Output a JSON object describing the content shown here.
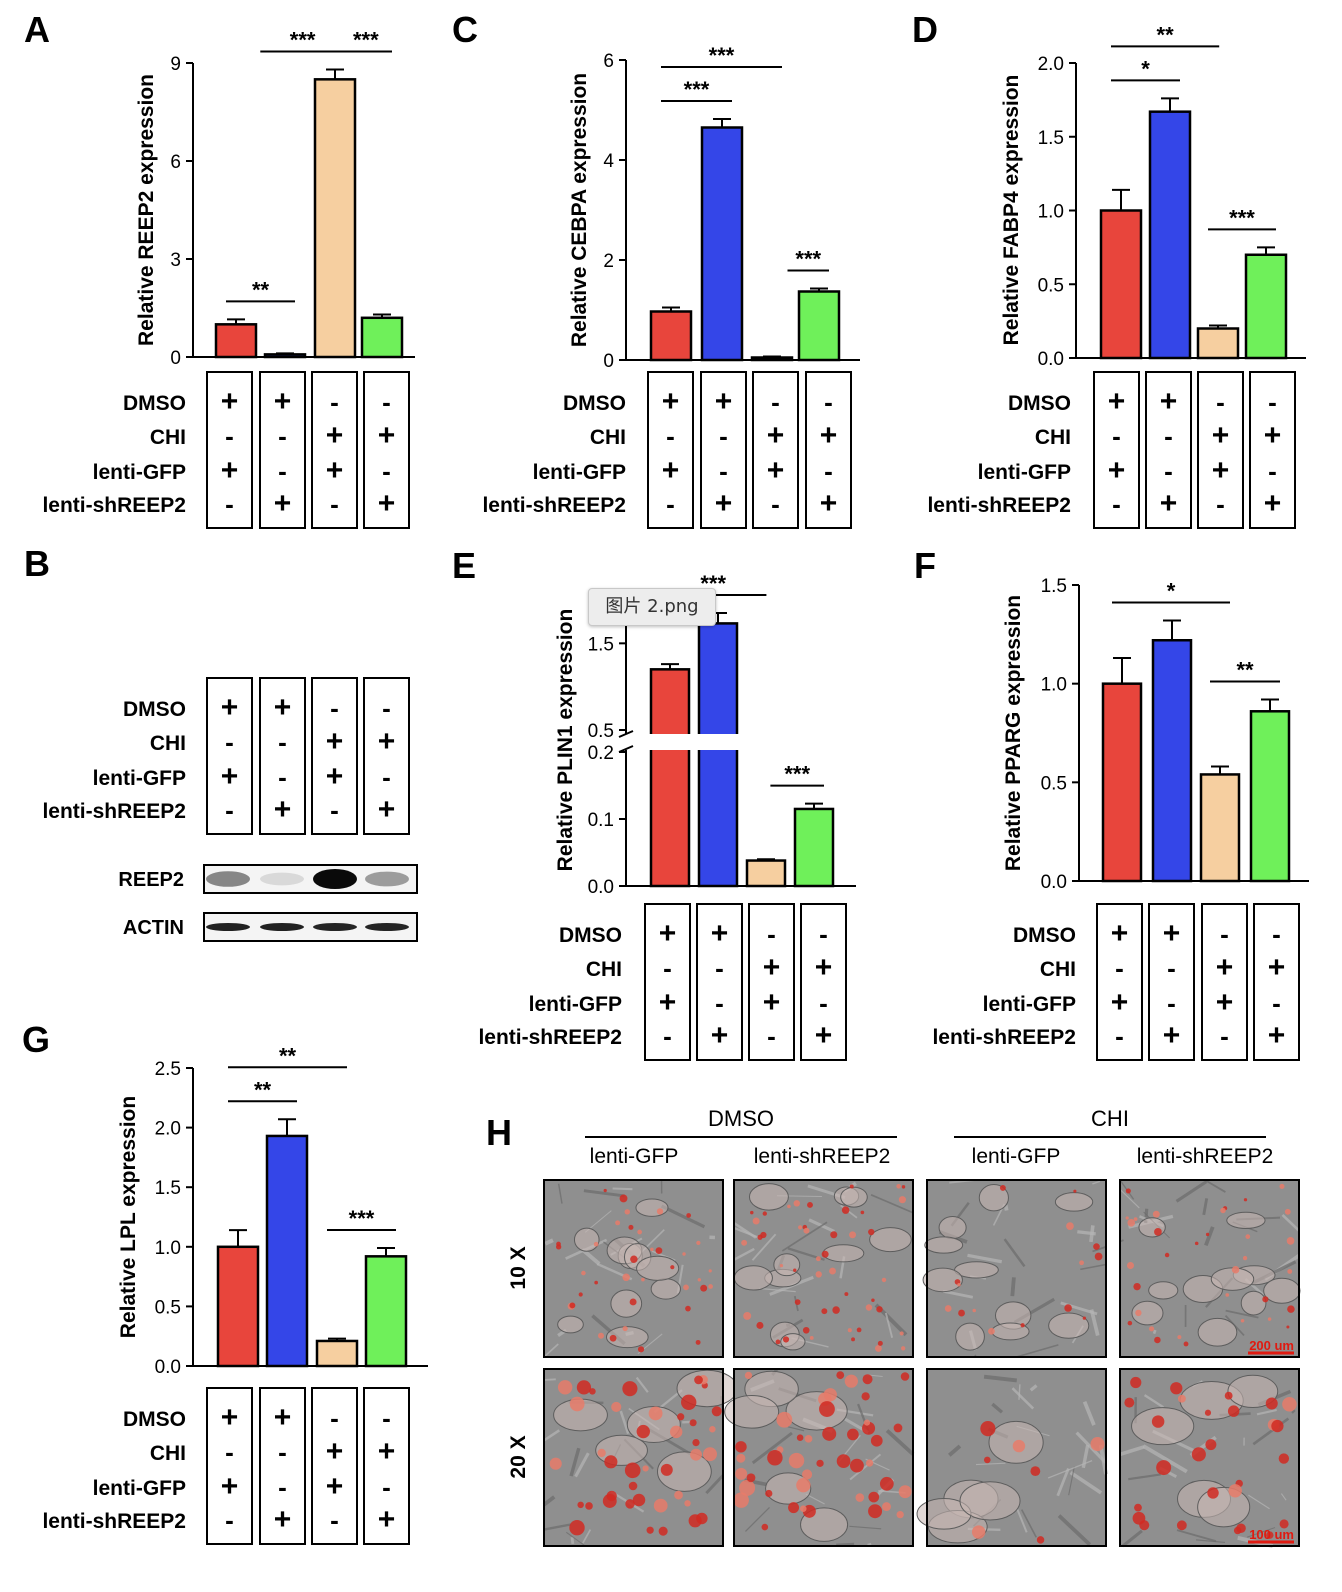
{
  "row_labels": [
    "DMSO",
    "CHI",
    "lenti-GFP",
    "lenti-shREEP2"
  ],
  "treatment_matrix": [
    [
      "+",
      "-",
      "+",
      "-"
    ],
    [
      "+",
      "-",
      "-",
      "+"
    ],
    [
      "-",
      "+",
      "+",
      "-"
    ],
    [
      "-",
      "+",
      "-",
      "+"
    ]
  ],
  "colors": {
    "bar1": "#e8453c",
    "bar2": "#3446e8",
    "bar3": "#f6cfa0",
    "bar4": "#6ff05a"
  },
  "tooltip": {
    "label": "图片 2.png"
  },
  "chart_data": [
    {
      "panel": "A",
      "type": "bar",
      "ylabel": "Relative REEP2 expression",
      "ylim": [
        0,
        9
      ],
      "yticks": [
        "0",
        "3",
        "6",
        "9"
      ],
      "tick_values": [
        0,
        3,
        6,
        9
      ],
      "values": [
        1.0,
        0.08,
        8.5,
        1.2
      ],
      "errors": [
        0.15,
        0.03,
        0.3,
        0.1
      ],
      "sig": [
        {
          "from": 0,
          "to": 1,
          "label": "**"
        },
        {
          "from": 0.7,
          "to": 2,
          "label": "***"
        },
        {
          "from": 2.3,
          "to": 3,
          "label": "***"
        }
      ]
    },
    {
      "panel": "C",
      "type": "bar",
      "ylabel": "Relative CEBPA expression",
      "ylim": [
        0,
        6
      ],
      "yticks": [
        "0",
        "2",
        "4",
        "6"
      ],
      "tick_values": [
        0,
        2,
        4,
        6
      ],
      "values": [
        0.97,
        4.65,
        0.05,
        1.37
      ],
      "errors": [
        0.08,
        0.17,
        0.02,
        0.06
      ],
      "sig": [
        {
          "from": 0,
          "to": 1,
          "label": "***"
        },
        {
          "from": 0,
          "to": 2,
          "label": "***"
        },
        {
          "from": 2.5,
          "to": 3,
          "label": "***"
        }
      ]
    },
    {
      "panel": "D",
      "type": "bar",
      "ylabel": "Relative FABP4 expression",
      "ylim": [
        0,
        2.0
      ],
      "yticks": [
        "0.0",
        "0.5",
        "1.0",
        "1.5",
        "2.0"
      ],
      "tick_values": [
        0,
        0.5,
        1.0,
        1.5,
        2.0
      ],
      "values": [
        1.0,
        1.67,
        0.2,
        0.7
      ],
      "errors": [
        0.14,
        0.09,
        0.02,
        0.05
      ],
      "sig": [
        {
          "from": 0,
          "to": 1,
          "label": "*"
        },
        {
          "from": 0,
          "to": 1.8,
          "label": "**"
        },
        {
          "from": 2,
          "to": 3,
          "label": "***"
        }
      ]
    },
    {
      "panel": "E",
      "type": "bar",
      "ylabel": "Relative PLIN1 expression",
      "ylim": [
        0,
        2.0
      ],
      "yticks": [
        "0.0",
        "0.1",
        "0.2",
        "0.5",
        "1.5"
      ],
      "tick_values": [
        0,
        0.1,
        0.2,
        0.5,
        1.5
      ],
      "values": [
        1.2,
        1.73,
        0.038,
        0.115
      ],
      "errors": [
        0.06,
        0.12,
        0.002,
        0.008
      ],
      "sig": [
        {
          "from": 0,
          "to": 1.8,
          "label": "***"
        },
        {
          "from": 2.3,
          "to": 3,
          "label": "***"
        }
      ]
    },
    {
      "panel": "F",
      "type": "bar",
      "ylabel": "Relative PPARG expression",
      "ylim": [
        0,
        1.5
      ],
      "yticks": [
        "0.0",
        "0.5",
        "1.0",
        "1.5"
      ],
      "tick_values": [
        0,
        0.5,
        1.0,
        1.5
      ],
      "values": [
        1.0,
        1.22,
        0.54,
        0.86
      ],
      "errors": [
        0.13,
        0.1,
        0.04,
        0.06
      ],
      "sig": [
        {
          "from": 0,
          "to": 2,
          "label": "*"
        },
        {
          "from": 2,
          "to": 3,
          "label": "**"
        }
      ]
    },
    {
      "panel": "G",
      "type": "bar",
      "ylabel": "Relative LPL expression",
      "ylim": [
        0,
        2.5
      ],
      "yticks": [
        "0.0",
        "0.5",
        "1.0",
        "1.5",
        "2.0",
        "2.5"
      ],
      "tick_values": [
        0,
        0.5,
        1.0,
        1.5,
        2.0,
        2.5
      ],
      "values": [
        1.0,
        1.93,
        0.21,
        0.92
      ],
      "errors": [
        0.14,
        0.14,
        0.02,
        0.07
      ],
      "sig": [
        {
          "from": 0,
          "to": 1,
          "label": "**"
        },
        {
          "from": 0,
          "to": 2,
          "label": "**"
        },
        {
          "from": 2,
          "to": 3,
          "label": "***"
        }
      ]
    }
  ],
  "panel_B": {
    "label": "B",
    "blot_rows": [
      {
        "name": "REEP2",
        "intensity": [
          0.45,
          0.08,
          1.0,
          0.35
        ]
      },
      {
        "name": "ACTIN",
        "intensity": [
          0.9,
          0.9,
          0.88,
          0.88
        ]
      }
    ]
  },
  "panel_H": {
    "label": "H",
    "groups": [
      "DMSO",
      "CHI"
    ],
    "columns": [
      "lenti-GFP",
      "lenti-shREEP2",
      "lenti-GFP",
      "lenti-shREEP2"
    ],
    "rows": [
      "10 X",
      "20 X"
    ],
    "scale_bars": [
      "200 um",
      "100 um"
    ]
  }
}
